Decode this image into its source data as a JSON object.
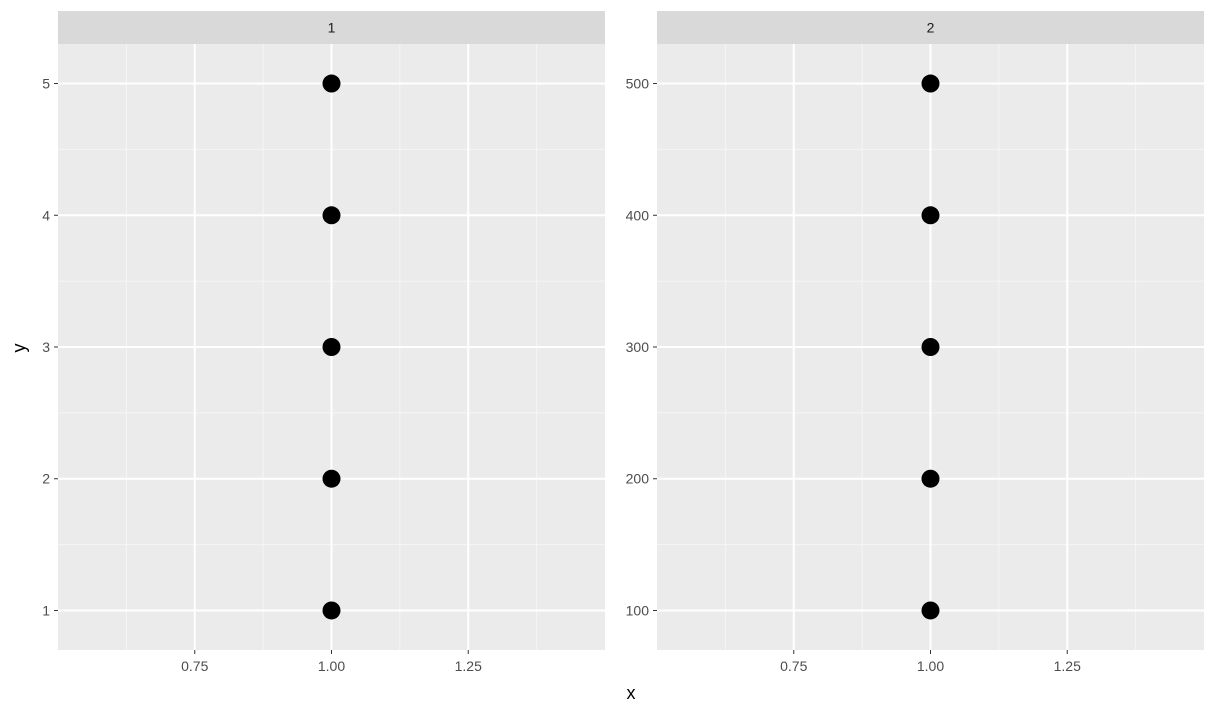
{
  "chart_data": {
    "type": "scatter",
    "facet_variable_values": [
      "1",
      "2"
    ],
    "xlabel": "x",
    "ylabel": "y",
    "grid": true,
    "shared_x": true,
    "facets": [
      {
        "strip_label": "1",
        "x": [
          1,
          1,
          1,
          1,
          1
        ],
        "y": [
          1,
          2,
          3,
          4,
          5
        ],
        "xlim": [
          0.5,
          1.5
        ],
        "ylim": [
          0.7,
          5.3
        ],
        "x_ticks": [
          0.75,
          1.0,
          1.25
        ],
        "x_tick_labels": [
          "0.75",
          "1.00",
          "1.25"
        ],
        "y_ticks": [
          1,
          2,
          3,
          4,
          5
        ],
        "y_tick_labels": [
          "1",
          "2",
          "3",
          "4",
          "5"
        ]
      },
      {
        "strip_label": "2",
        "x": [
          1,
          1,
          1,
          1,
          1
        ],
        "y": [
          100,
          200,
          300,
          400,
          500
        ],
        "xlim": [
          0.5,
          1.5
        ],
        "ylim": [
          70,
          530
        ],
        "x_ticks": [
          0.75,
          1.0,
          1.25
        ],
        "x_tick_labels": [
          "0.75",
          "1.00",
          "1.25"
        ],
        "y_ticks": [
          100,
          200,
          300,
          400,
          500
        ],
        "y_tick_labels": [
          "100",
          "200",
          "300",
          "400",
          "500"
        ]
      }
    ]
  },
  "colors": {
    "panel_background": "#ebebeb",
    "strip_background": "#d9d9d9",
    "grid_major": "#ffffff",
    "grid_minor": "#f5f5f5",
    "point": "#000000",
    "tick": "#333333"
  }
}
